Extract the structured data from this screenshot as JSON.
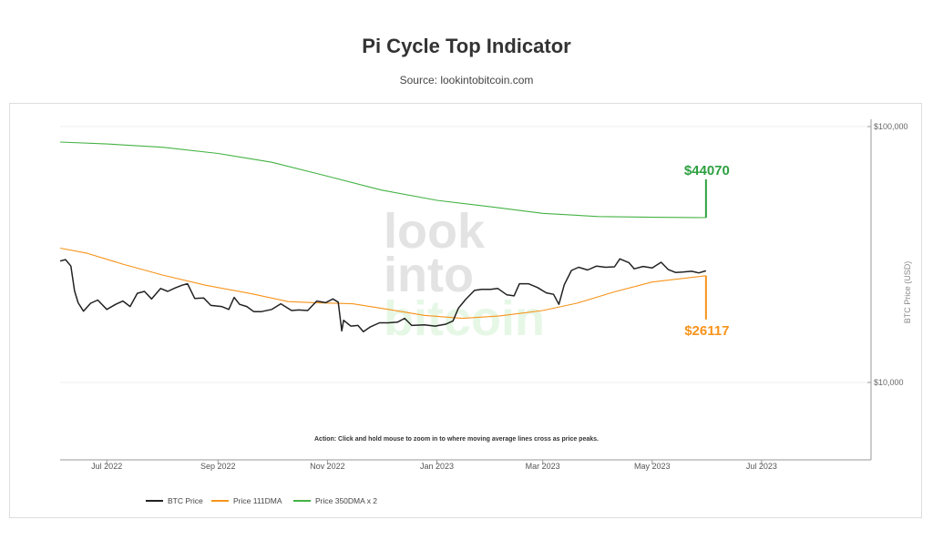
{
  "chart_data": {
    "type": "line",
    "title": "Pi Cycle Top Indicator",
    "subtitle": "Source: lookintobitcoin.com",
    "ylabel": "BTC Price (USD)",
    "y_scale": "log",
    "ylim": [
      3500,
      100000
    ],
    "xlim": [
      "2022-06-05",
      "2023-08-31"
    ],
    "x_ticks": [
      {
        "date": "2022-07-01",
        "label": "Jul 2022"
      },
      {
        "date": "2022-09-01",
        "label": "Sep 2022"
      },
      {
        "date": "2022-11-01",
        "label": "Nov 2022"
      },
      {
        "date": "2023-01-01",
        "label": "Jan 2023"
      },
      {
        "date": "2023-03-01",
        "label": "Mar 2023"
      },
      {
        "date": "2023-05-01",
        "label": "May 2023"
      },
      {
        "date": "2023-07-01",
        "label": "Jul 2023"
      }
    ],
    "y_ticks": [
      {
        "value": 10000,
        "label": "$10,000"
      },
      {
        "value": 100000,
        "label": "$100,000"
      }
    ],
    "grid": true,
    "legend_position": "bottom-left",
    "annotation": "Action: Click and hold mouse to zoom in to where moving average lines cross as price peaks.",
    "watermark": [
      "look",
      "into",
      "bitcoin"
    ],
    "series": [
      {
        "name": "BTC Price",
        "color": "#222222",
        "points": [
          [
            "2022-06-05",
            29800
          ],
          [
            "2022-06-08",
            30200
          ],
          [
            "2022-06-11",
            28500
          ],
          [
            "2022-06-13",
            22800
          ],
          [
            "2022-06-15",
            20500
          ],
          [
            "2022-06-18",
            19000
          ],
          [
            "2022-06-22",
            20400
          ],
          [
            "2022-06-26",
            21000
          ],
          [
            "2022-07-01",
            19300
          ],
          [
            "2022-07-06",
            20200
          ],
          [
            "2022-07-10",
            20800
          ],
          [
            "2022-07-14",
            19800
          ],
          [
            "2022-07-18",
            22300
          ],
          [
            "2022-07-22",
            22700
          ],
          [
            "2022-07-26",
            21200
          ],
          [
            "2022-07-31",
            23300
          ],
          [
            "2022-08-04",
            22700
          ],
          [
            "2022-08-08",
            23400
          ],
          [
            "2022-08-12",
            24000
          ],
          [
            "2022-08-15",
            24300
          ],
          [
            "2022-08-19",
            21300
          ],
          [
            "2022-08-24",
            21400
          ],
          [
            "2022-08-28",
            20000
          ],
          [
            "2022-09-03",
            19800
          ],
          [
            "2022-09-07",
            19300
          ],
          [
            "2022-09-10",
            21500
          ],
          [
            "2022-09-13",
            20200
          ],
          [
            "2022-09-17",
            19800
          ],
          [
            "2022-09-21",
            18900
          ],
          [
            "2022-09-25",
            18900
          ],
          [
            "2022-10-01",
            19300
          ],
          [
            "2022-10-06",
            20300
          ],
          [
            "2022-10-12",
            19100
          ],
          [
            "2022-10-16",
            19200
          ],
          [
            "2022-10-21",
            19100
          ],
          [
            "2022-10-26",
            20800
          ],
          [
            "2022-10-31",
            20500
          ],
          [
            "2022-11-04",
            21200
          ],
          [
            "2022-11-07",
            20600
          ],
          [
            "2022-11-09",
            15900
          ],
          [
            "2022-11-10",
            17500
          ],
          [
            "2022-11-14",
            16600
          ],
          [
            "2022-11-18",
            16700
          ],
          [
            "2022-11-21",
            15800
          ],
          [
            "2022-11-25",
            16500
          ],
          [
            "2022-11-30",
            17100
          ],
          [
            "2022-12-05",
            17100
          ],
          [
            "2022-12-10",
            17200
          ],
          [
            "2022-12-14",
            17800
          ],
          [
            "2022-12-18",
            16700
          ],
          [
            "2022-12-25",
            16800
          ],
          [
            "2022-12-31",
            16600
          ],
          [
            "2023-01-06",
            16900
          ],
          [
            "2023-01-10",
            17400
          ],
          [
            "2023-01-13",
            19500
          ],
          [
            "2023-01-17",
            21100
          ],
          [
            "2023-01-22",
            22900
          ],
          [
            "2023-01-26",
            23100
          ],
          [
            "2023-01-31",
            23100
          ],
          [
            "2023-02-04",
            23300
          ],
          [
            "2023-02-09",
            22000
          ],
          [
            "2023-02-13",
            21800
          ],
          [
            "2023-02-16",
            24300
          ],
          [
            "2023-02-21",
            24300
          ],
          [
            "2023-02-26",
            23500
          ],
          [
            "2023-03-03",
            22400
          ],
          [
            "2023-03-07",
            22100
          ],
          [
            "2023-03-10",
            20200
          ],
          [
            "2023-03-13",
            24100
          ],
          [
            "2023-03-17",
            27400
          ],
          [
            "2023-03-21",
            28200
          ],
          [
            "2023-03-26",
            27500
          ],
          [
            "2023-03-31",
            28500
          ],
          [
            "2023-04-05",
            28200
          ],
          [
            "2023-04-10",
            28300
          ],
          [
            "2023-04-13",
            30400
          ],
          [
            "2023-04-18",
            29400
          ],
          [
            "2023-04-21",
            27800
          ],
          [
            "2023-04-26",
            28400
          ],
          [
            "2023-05-01",
            28000
          ],
          [
            "2023-05-06",
            29500
          ],
          [
            "2023-05-10",
            27600
          ],
          [
            "2023-05-14",
            26900
          ],
          [
            "2023-05-18",
            27000
          ],
          [
            "2023-05-23",
            27200
          ],
          [
            "2023-05-27",
            26800
          ],
          [
            "2023-05-31",
            27300
          ]
        ]
      },
      {
        "name": "Price 111DMA",
        "color": "#f7931a",
        "points": [
          [
            "2022-06-05",
            33500
          ],
          [
            "2022-06-20",
            32000
          ],
          [
            "2022-07-10",
            29000
          ],
          [
            "2022-08-01",
            26300
          ],
          [
            "2022-08-25",
            24000
          ],
          [
            "2022-09-20",
            22200
          ],
          [
            "2022-10-10",
            20700
          ],
          [
            "2022-10-25",
            20500
          ],
          [
            "2022-11-15",
            20300
          ],
          [
            "2022-12-05",
            19300
          ],
          [
            "2022-12-25",
            18300
          ],
          [
            "2023-01-15",
            17800
          ],
          [
            "2023-02-05",
            18200
          ],
          [
            "2023-03-01",
            19100
          ],
          [
            "2023-03-20",
            20400
          ],
          [
            "2023-04-10",
            22600
          ],
          [
            "2023-05-01",
            24700
          ],
          [
            "2023-05-31",
            26117
          ]
        ]
      },
      {
        "name": "Price 350DMA x 2",
        "color": "#44b244",
        "points": [
          [
            "2022-06-05",
            87000
          ],
          [
            "2022-07-01",
            85500
          ],
          [
            "2022-08-01",
            83000
          ],
          [
            "2022-09-01",
            78500
          ],
          [
            "2022-10-01",
            72500
          ],
          [
            "2022-11-01",
            64000
          ],
          [
            "2022-12-01",
            56500
          ],
          [
            "2023-01-01",
            51500
          ],
          [
            "2023-02-01",
            48500
          ],
          [
            "2023-03-01",
            45800
          ],
          [
            "2023-04-01",
            44500
          ],
          [
            "2023-05-01",
            44200
          ],
          [
            "2023-05-31",
            44070
          ]
        ]
      }
    ],
    "callouts": [
      {
        "series": "Price 350DMA x 2",
        "label": "$44070",
        "color": "#2ea040",
        "date": "2023-05-31",
        "value": 44070
      },
      {
        "series": "Price 111DMA",
        "label": "$26117",
        "color": "#f7931a",
        "date": "2023-05-31",
        "value": 26117
      }
    ]
  }
}
